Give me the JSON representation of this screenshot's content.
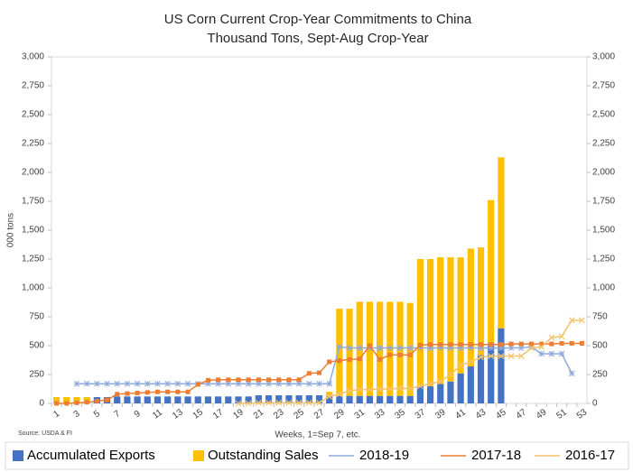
{
  "chart_data": {
    "type": "bar",
    "title": "US Corn Current Crop-Year Commitments to China",
    "subtitle": "Thousand Tons, Sept-Aug Crop-Year",
    "x_label": "Weeks, 1=Sep 7, etc.",
    "y_label": "000 tons",
    "source": "Source: USDA & FI",
    "categories": [
      1,
      null,
      3,
      null,
      5,
      null,
      7,
      null,
      9,
      null,
      11,
      null,
      13,
      null,
      15,
      null,
      17,
      null,
      19,
      null,
      21,
      null,
      23,
      null,
      25,
      null,
      27,
      null,
      29,
      null,
      31,
      null,
      33,
      null,
      35,
      null,
      37,
      null,
      39,
      null,
      41,
      null,
      43,
      null,
      45,
      null,
      47,
      null,
      49,
      null,
      51,
      null,
      53
    ],
    "ylim": [
      0,
      3000
    ],
    "yticks": [
      0,
      250,
      500,
      750,
      {
        "value": 1000,
        "label": "1,000"
      },
      {
        "value": 1250,
        "label": "1,250"
      },
      {
        "value": 1500,
        "label": "1,500"
      },
      {
        "value": 1750,
        "label": "1,750"
      },
      {
        "value": 2000,
        "label": "2,000"
      },
      {
        "value": 2250,
        "label": "2,250"
      },
      {
        "value": 2500,
        "label": "2,500"
      },
      {
        "value": 2750,
        "label": "2,750"
      },
      {
        "value": 3000,
        "label": "3,000"
      }
    ],
    "y2lim": [
      0,
      3000
    ],
    "y2ticks": [
      0,
      250,
      500,
      750,
      {
        "value": 1000,
        "label": "1,000"
      },
      {
        "value": 1250,
        "label": "1,250"
      },
      {
        "value": 1500,
        "label": "1,500"
      },
      {
        "value": 1750,
        "label": "1,750"
      },
      {
        "value": 2000,
        "label": "2,000"
      },
      {
        "value": 2250,
        "label": "2,250"
      },
      {
        "value": 2500,
        "label": "2,500"
      },
      {
        "value": 2750,
        "label": "2,750"
      },
      {
        "value": 3000,
        "label": "3,000"
      }
    ],
    "grid": false,
    "legend": "bottom",
    "series": [
      {
        "name": "Accumulated Exports",
        "type": "bar",
        "color": "#4472c4",
        "values": [
          0,
          0,
          0,
          0,
          55,
          55,
          60,
          60,
          60,
          60,
          60,
          60,
          60,
          60,
          60,
          60,
          60,
          60,
          60,
          60,
          70,
          70,
          70,
          70,
          70,
          70,
          70,
          60,
          65,
          65,
          65,
          65,
          65,
          65,
          65,
          65,
          150,
          150,
          170,
          190,
          260,
          320,
          420,
          520,
          650,
          null,
          null,
          null,
          null,
          null,
          null,
          null,
          null
        ]
      },
      {
        "name": "Outstanding Sales",
        "type": "bar",
        "color": "#ffc000",
        "values": [
          55,
          55,
          55,
          55,
          0,
          0,
          0,
          0,
          0,
          0,
          0,
          0,
          0,
          0,
          0,
          0,
          0,
          0,
          0,
          0,
          0,
          0,
          0,
          0,
          0,
          0,
          0,
          40,
          755,
          755,
          815,
          815,
          815,
          815,
          815,
          805,
          1100,
          1100,
          1095,
          1075,
          1005,
          1020,
          930,
          1240,
          1480,
          null,
          null,
          null,
          null,
          null,
          null,
          null,
          null
        ]
      },
      {
        "name": "2018-19",
        "type": "line",
        "color": "#8faadc",
        "values": [
          null,
          null,
          170,
          170,
          170,
          170,
          170,
          170,
          170,
          170,
          170,
          170,
          170,
          170,
          170,
          170,
          170,
          170,
          170,
          170,
          170,
          170,
          170,
          170,
          170,
          170,
          170,
          170,
          490,
          480,
          480,
          480,
          480,
          480,
          480,
          480,
          480,
          480,
          480,
          480,
          480,
          480,
          480,
          480,
          480,
          480,
          480,
          490,
          430,
          430,
          430,
          260,
          null
        ]
      },
      {
        "name": "2017-18",
        "type": "line",
        "color": "#ed7d31",
        "values": [
          0,
          0,
          5,
          10,
          20,
          30,
          80,
          85,
          90,
          95,
          100,
          100,
          100,
          100,
          165,
          200,
          205,
          205,
          205,
          205,
          205,
          205,
          205,
          205,
          205,
          260,
          265,
          360,
          370,
          380,
          385,
          500,
          380,
          420,
          420,
          420,
          505,
          510,
          510,
          510,
          510,
          510,
          510,
          510,
          510,
          515,
          515,
          515,
          515,
          515,
          520,
          520,
          520
        ]
      },
      {
        "name": "2016-17",
        "type": "line",
        "color": "#f4c36a",
        "values": [
          null,
          null,
          null,
          null,
          null,
          null,
          null,
          null,
          null,
          null,
          null,
          null,
          null,
          null,
          null,
          null,
          null,
          null,
          0,
          0,
          5,
          5,
          5,
          5,
          5,
          5,
          5,
          60,
          80,
          110,
          120,
          120,
          125,
          125,
          130,
          130,
          150,
          170,
          190,
          250,
          330,
          360,
          400,
          410,
          410,
          410,
          410,
          480,
          490,
          570,
          580,
          720,
          720
        ]
      }
    ]
  }
}
